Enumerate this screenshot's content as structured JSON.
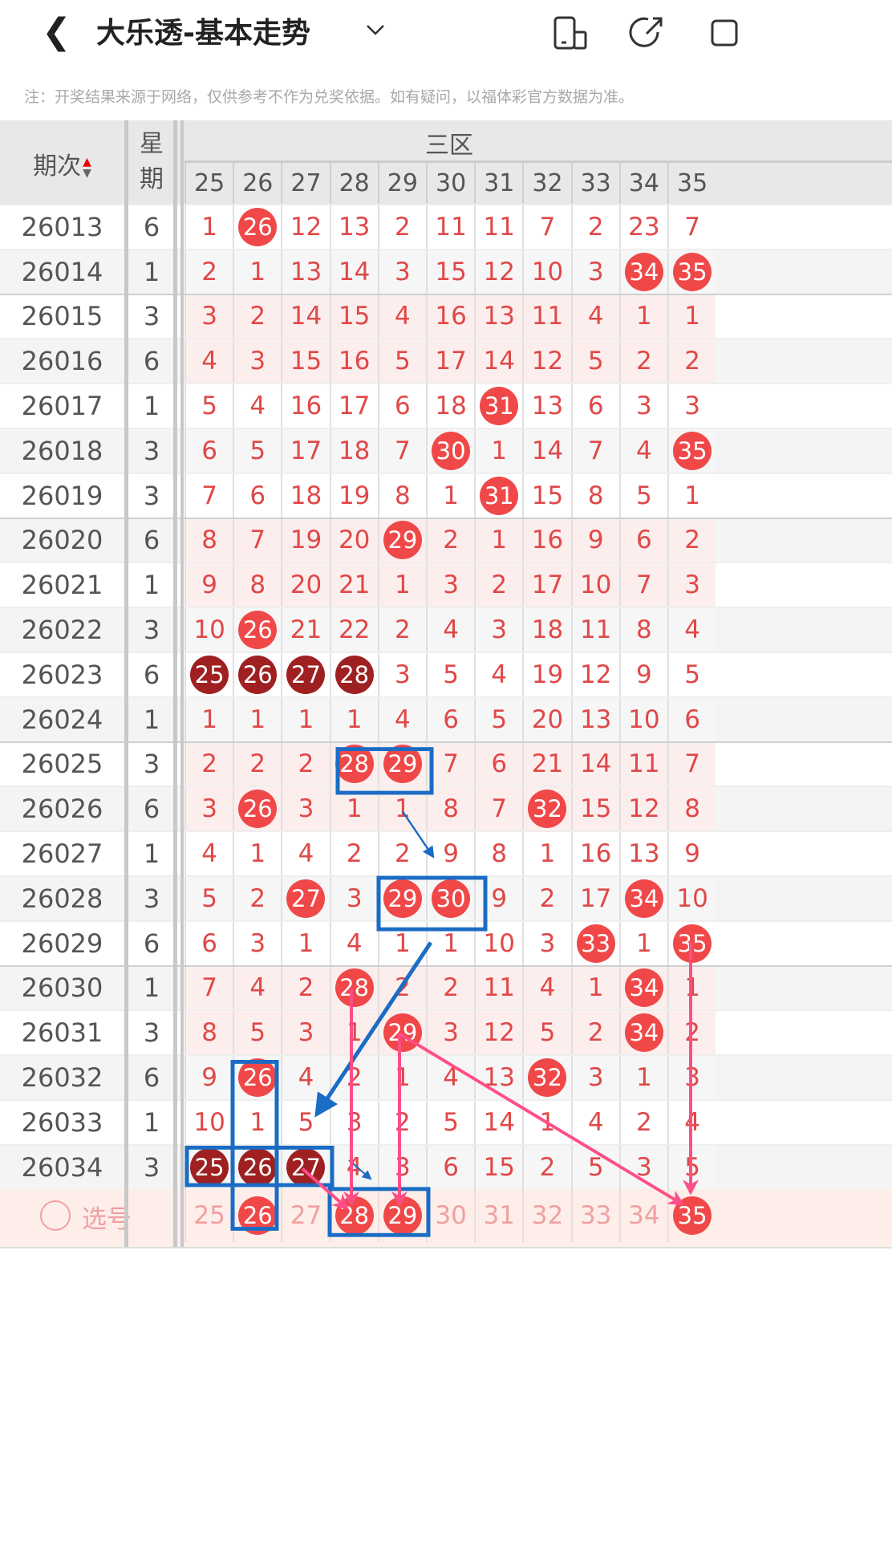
{
  "header": {
    "title": "大乐透-基本走势",
    "back_icon": "chevron-left-icon",
    "dropdown_icon": "chevron-down-icon",
    "icons": [
      "device-icon",
      "share-icon"
    ]
  },
  "note": "注：开奖结果来源于网络，仅供参考不作为兑奖依据。如有疑问，以福体彩官方数据为准。",
  "table": {
    "col_period": "期次",
    "col_weekday": "星期",
    "zone": "三区",
    "numbers": [
      "25",
      "26",
      "27",
      "28",
      "29",
      "30",
      "31",
      "32",
      "33",
      "34",
      "35"
    ],
    "rows": [
      {
        "period": "26013",
        "weekday": "6",
        "values": [
          "1",
          "26",
          "12",
          "13",
          "2",
          "11",
          "11",
          "7",
          "2",
          "23",
          "7"
        ],
        "balls": [
          1
        ]
      },
      {
        "period": "26014",
        "weekday": "1",
        "values": [
          "2",
          "1",
          "13",
          "14",
          "3",
          "15",
          "12",
          "10",
          "3",
          "34",
          "35"
        ],
        "balls": [
          9,
          10
        ]
      },
      {
        "period": "26015",
        "weekday": "3",
        "values": [
          "3",
          "2",
          "14",
          "15",
          "4",
          "16",
          "13",
          "11",
          "4",
          "1",
          "1"
        ],
        "balls": []
      },
      {
        "period": "26016",
        "weekday": "6",
        "values": [
          "4",
          "3",
          "15",
          "16",
          "5",
          "17",
          "14",
          "12",
          "5",
          "2",
          "2"
        ],
        "balls": []
      },
      {
        "period": "26017",
        "weekday": "1",
        "values": [
          "5",
          "4",
          "16",
          "17",
          "6",
          "18",
          "31",
          "13",
          "6",
          "3",
          "3"
        ],
        "balls": [
          6
        ]
      },
      {
        "period": "26018",
        "weekday": "3",
        "values": [
          "6",
          "5",
          "17",
          "18",
          "7",
          "30",
          "1",
          "14",
          "7",
          "4",
          "35"
        ],
        "balls": [
          5,
          10
        ]
      },
      {
        "period": "26019",
        "weekday": "3",
        "values": [
          "7",
          "6",
          "18",
          "19",
          "8",
          "1",
          "31",
          "15",
          "8",
          "5",
          "1"
        ],
        "balls": [
          6
        ]
      },
      {
        "period": "26020",
        "weekday": "6",
        "values": [
          "8",
          "7",
          "19",
          "20",
          "29",
          "2",
          "1",
          "16",
          "9",
          "6",
          "2"
        ],
        "balls": [
          4
        ]
      },
      {
        "period": "26021",
        "weekday": "1",
        "values": [
          "9",
          "8",
          "20",
          "21",
          "1",
          "3",
          "2",
          "17",
          "10",
          "7",
          "3"
        ],
        "balls": []
      },
      {
        "period": "26022",
        "weekday": "3",
        "values": [
          "10",
          "26",
          "21",
          "22",
          "2",
          "4",
          "3",
          "18",
          "11",
          "8",
          "4"
        ],
        "balls": [
          1
        ]
      },
      {
        "period": "26023",
        "weekday": "6",
        "values": [
          "25",
          "26",
          "27",
          "28",
          "3",
          "5",
          "4",
          "19",
          "12",
          "9",
          "5"
        ],
        "balls": [
          0,
          1,
          2,
          3
        ],
        "dark": true
      },
      {
        "period": "26024",
        "weekday": "1",
        "values": [
          "1",
          "1",
          "1",
          "1",
          "4",
          "6",
          "5",
          "20",
          "13",
          "10",
          "6"
        ],
        "balls": []
      },
      {
        "period": "26025",
        "weekday": "3",
        "values": [
          "2",
          "2",
          "2",
          "28",
          "29",
          "7",
          "6",
          "21",
          "14",
          "11",
          "7"
        ],
        "balls": [
          3,
          4
        ]
      },
      {
        "period": "26026",
        "weekday": "6",
        "values": [
          "3",
          "26",
          "3",
          "1",
          "1",
          "8",
          "7",
          "32",
          "15",
          "12",
          "8"
        ],
        "balls": [
          1,
          7
        ]
      },
      {
        "period": "26027",
        "weekday": "1",
        "values": [
          "4",
          "1",
          "4",
          "2",
          "2",
          "9",
          "8",
          "1",
          "16",
          "13",
          "9"
        ],
        "balls": []
      },
      {
        "period": "26028",
        "weekday": "3",
        "values": [
          "5",
          "2",
          "27",
          "3",
          "29",
          "30",
          "9",
          "2",
          "17",
          "34",
          "10"
        ],
        "balls": [
          2,
          4,
          5,
          9
        ]
      },
      {
        "period": "26029",
        "weekday": "6",
        "values": [
          "6",
          "3",
          "1",
          "4",
          "1",
          "1",
          "10",
          "3",
          "33",
          "1",
          "35"
        ],
        "balls": [
          8,
          10
        ]
      },
      {
        "period": "26030",
        "weekday": "1",
        "values": [
          "7",
          "4",
          "2",
          "28",
          "2",
          "2",
          "11",
          "4",
          "1",
          "34",
          "1"
        ],
        "balls": [
          3,
          9
        ]
      },
      {
        "period": "26031",
        "weekday": "3",
        "values": [
          "8",
          "5",
          "3",
          "1",
          "29",
          "3",
          "12",
          "5",
          "2",
          "34",
          "2"
        ],
        "balls": [
          4,
          9
        ]
      },
      {
        "period": "26032",
        "weekday": "6",
        "values": [
          "9",
          "26",
          "4",
          "2",
          "1",
          "4",
          "13",
          "32",
          "3",
          "1",
          "3"
        ],
        "balls": [
          1,
          7
        ]
      },
      {
        "period": "26033",
        "weekday": "1",
        "values": [
          "10",
          "1",
          "5",
          "3",
          "2",
          "5",
          "14",
          "1",
          "4",
          "2",
          "4"
        ],
        "balls": []
      },
      {
        "period": "26034",
        "weekday": "3",
        "values": [
          "25",
          "26",
          "27",
          "4",
          "3",
          "6",
          "15",
          "2",
          "5",
          "3",
          "5"
        ],
        "balls": [
          0,
          1,
          2
        ],
        "dark": true
      }
    ],
    "select_row": {
      "label": "选号",
      "balls": [
        1,
        3,
        4,
        10
      ]
    }
  },
  "colors": {
    "ball": "#f04848",
    "ball_dark": "#9e2020",
    "annotation_box": "#1a6cc4",
    "annotation_arrow": "#ff4d88",
    "select_bg": "#fdeeea"
  }
}
